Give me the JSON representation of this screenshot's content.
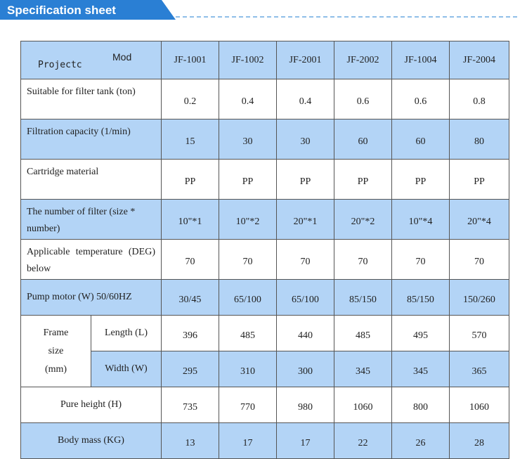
{
  "header": {
    "title": "Specification sheet"
  },
  "table": {
    "corner_top": "Mod",
    "corner_bottom": "Projectc",
    "columns": [
      "JF-1001",
      "JF-1002",
      "JF-2001",
      "JF-2002",
      "JF-1004",
      "JF-2004"
    ],
    "rows_before": [
      {
        "label": "Suitable for filter tank (ton)",
        "values": [
          0.2,
          0.4,
          0.4,
          0.6,
          0.6,
          0.8
        ]
      },
      {
        "label": "Filtration capacity (1/min)",
        "values": [
          15,
          30,
          30,
          60,
          60,
          80
        ]
      },
      {
        "label": "Cartridge material",
        "values": [
          "PP",
          "PP",
          "PP",
          "PP",
          "PP",
          "PP"
        ]
      },
      {
        "label": "The number of filter (size * number)",
        "values": [
          "10\"*1",
          "10\"*2",
          "20\"*1",
          "20\"*2",
          "10\"*4",
          "20\"*4"
        ]
      },
      {
        "label": "Applicable temperature (DEG) below",
        "values": [
          70,
          70,
          70,
          70,
          70,
          70
        ]
      },
      {
        "label": "Pump motor (W) 50/60HZ",
        "values": [
          "30/45",
          "65/100",
          "65/100",
          "85/150",
          "85/150",
          "150/260"
        ]
      }
    ],
    "frame_size": {
      "label": "Frame size (mm)",
      "rows": [
        {
          "label": "Length (L)",
          "values": [
            396,
            485,
            440,
            485,
            495,
            570
          ]
        },
        {
          "label": "Width (W)",
          "values": [
            295,
            310,
            300,
            345,
            345,
            365
          ]
        }
      ]
    },
    "rows_after": [
      {
        "label": "Pure height (H)",
        "values": [
          735,
          770,
          980,
          1060,
          800,
          1060
        ]
      },
      {
        "label": "Body mass (KG)",
        "values": [
          13,
          17,
          17,
          22,
          26,
          28
        ]
      }
    ]
  }
}
